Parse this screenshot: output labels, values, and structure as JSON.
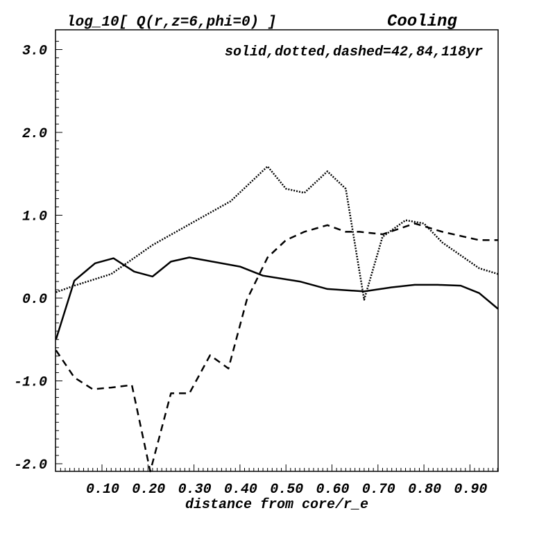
{
  "chart_data": {
    "type": "line",
    "title": "log_10[ Q(r,z=6,phi=0) ]",
    "subtitle": "Cooling",
    "annotation": "solid,dotted,dashed=42,84,118yr",
    "xlabel": "distance from core/r_e",
    "ylabel": "",
    "xlim": [
      0.0,
      0.961
    ],
    "ylim": [
      -2.09,
      3.24
    ],
    "xticks": [
      "0.10",
      "0.20",
      "0.30",
      "0.40",
      "0.50",
      "0.60",
      "0.70",
      "0.80",
      "0.90"
    ],
    "xtick_values": [
      0.1,
      0.2,
      0.3,
      0.4,
      0.5,
      0.6,
      0.7,
      0.8,
      0.9
    ],
    "yticks": [
      "3.0",
      "2.0",
      "1.0",
      "0.0",
      "-1.0",
      "-2.0"
    ],
    "ytick_values": [
      3,
      2,
      1,
      0,
      -1,
      -2
    ],
    "grid": false,
    "series": [
      {
        "name": "solid (42yr)",
        "style": "solid",
        "x": [
          0.0,
          0.04,
          0.085,
          0.125,
          0.17,
          0.21,
          0.25,
          0.29,
          0.4,
          0.45,
          0.53,
          0.59,
          0.67,
          0.73,
          0.78,
          0.83,
          0.88,
          0.92,
          0.961
        ],
        "y": [
          -0.5,
          0.21,
          0.42,
          0.48,
          0.32,
          0.26,
          0.44,
          0.49,
          0.38,
          0.27,
          0.2,
          0.11,
          0.08,
          0.13,
          0.16,
          0.16,
          0.15,
          0.06,
          -0.13
        ]
      },
      {
        "name": "dotted (84yr)",
        "style": "dotted",
        "x": [
          0.0,
          0.04,
          0.12,
          0.21,
          0.29,
          0.38,
          0.46,
          0.5,
          0.54,
          0.59,
          0.63,
          0.67,
          0.71,
          0.76,
          0.8,
          0.84,
          0.92,
          0.961
        ],
        "y": [
          0.07,
          0.15,
          0.29,
          0.64,
          0.89,
          1.17,
          1.59,
          1.32,
          1.27,
          1.53,
          1.32,
          -0.02,
          0.74,
          0.94,
          0.9,
          0.67,
          0.36,
          0.29
        ]
      },
      {
        "name": "dashed (118yr)",
        "style": "dashed",
        "x": [
          0.0,
          0.04,
          0.08,
          0.12,
          0.165,
          0.205,
          0.25,
          0.29,
          0.335,
          0.375,
          0.415,
          0.46,
          0.5,
          0.54,
          0.59,
          0.63,
          0.66,
          0.71,
          0.78,
          0.84,
          0.92,
          0.961
        ],
        "y": [
          -0.63,
          -0.96,
          -1.1,
          -1.08,
          -1.05,
          -2.1,
          -1.15,
          -1.15,
          -0.69,
          -0.85,
          -0.02,
          0.49,
          0.7,
          0.8,
          0.88,
          0.8,
          0.8,
          0.77,
          0.9,
          0.8,
          0.7,
          0.7
        ]
      }
    ]
  }
}
